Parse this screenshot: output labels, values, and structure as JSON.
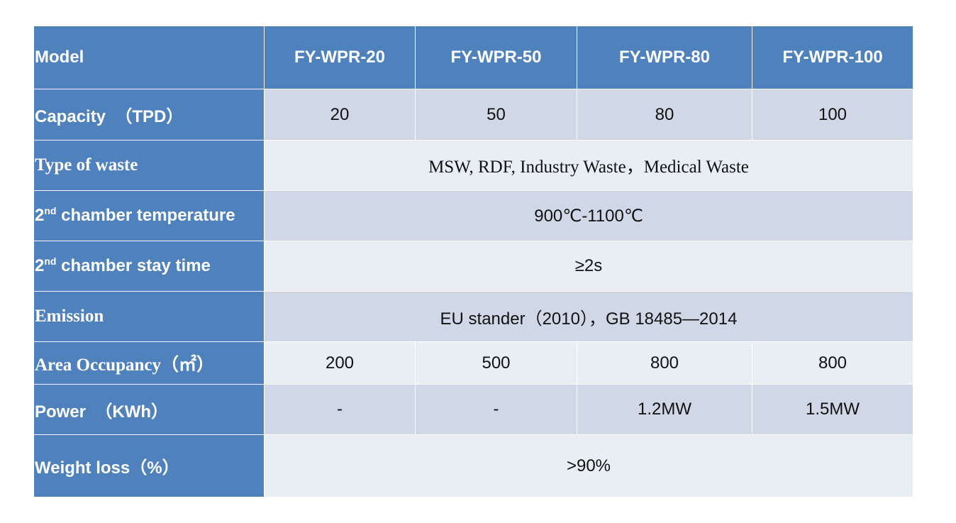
{
  "header": {
    "label": "Model",
    "models": [
      "FY-WPR-20",
      "FY-WPR-50",
      "FY-WPR-80",
      "FY-WPR-100"
    ]
  },
  "rows": {
    "capacity": {
      "label": "Capacity  （TPD）",
      "values": [
        "20",
        "50",
        "80",
        "100"
      ]
    },
    "waste_type": {
      "label": "Type of waste",
      "value": "MSW, RDF, Industry Waste，Medical Waste"
    },
    "temperature": {
      "label_num": "2",
      "label_sup": "nd",
      "label_rest": " chamber temperature",
      "value": "900℃-1100℃"
    },
    "stay_time": {
      "label_num": "2",
      "label_sup": "nd",
      "label_rest": " chamber stay time",
      "value": "≥2s"
    },
    "emission": {
      "label": "Emission",
      "value": "EU stander（2010），GB 18485—2014"
    },
    "area": {
      "label": "Area Occupancy（㎡）",
      "values": [
        "200",
        "500",
        "800",
        "800"
      ]
    },
    "power": {
      "label": "Power  （KWh）",
      "values": [
        "-",
        "-",
        "1.2MW",
        "1.5MW"
      ]
    },
    "weight_loss": {
      "label": "Weight loss（%）",
      "value": ">90%"
    }
  }
}
